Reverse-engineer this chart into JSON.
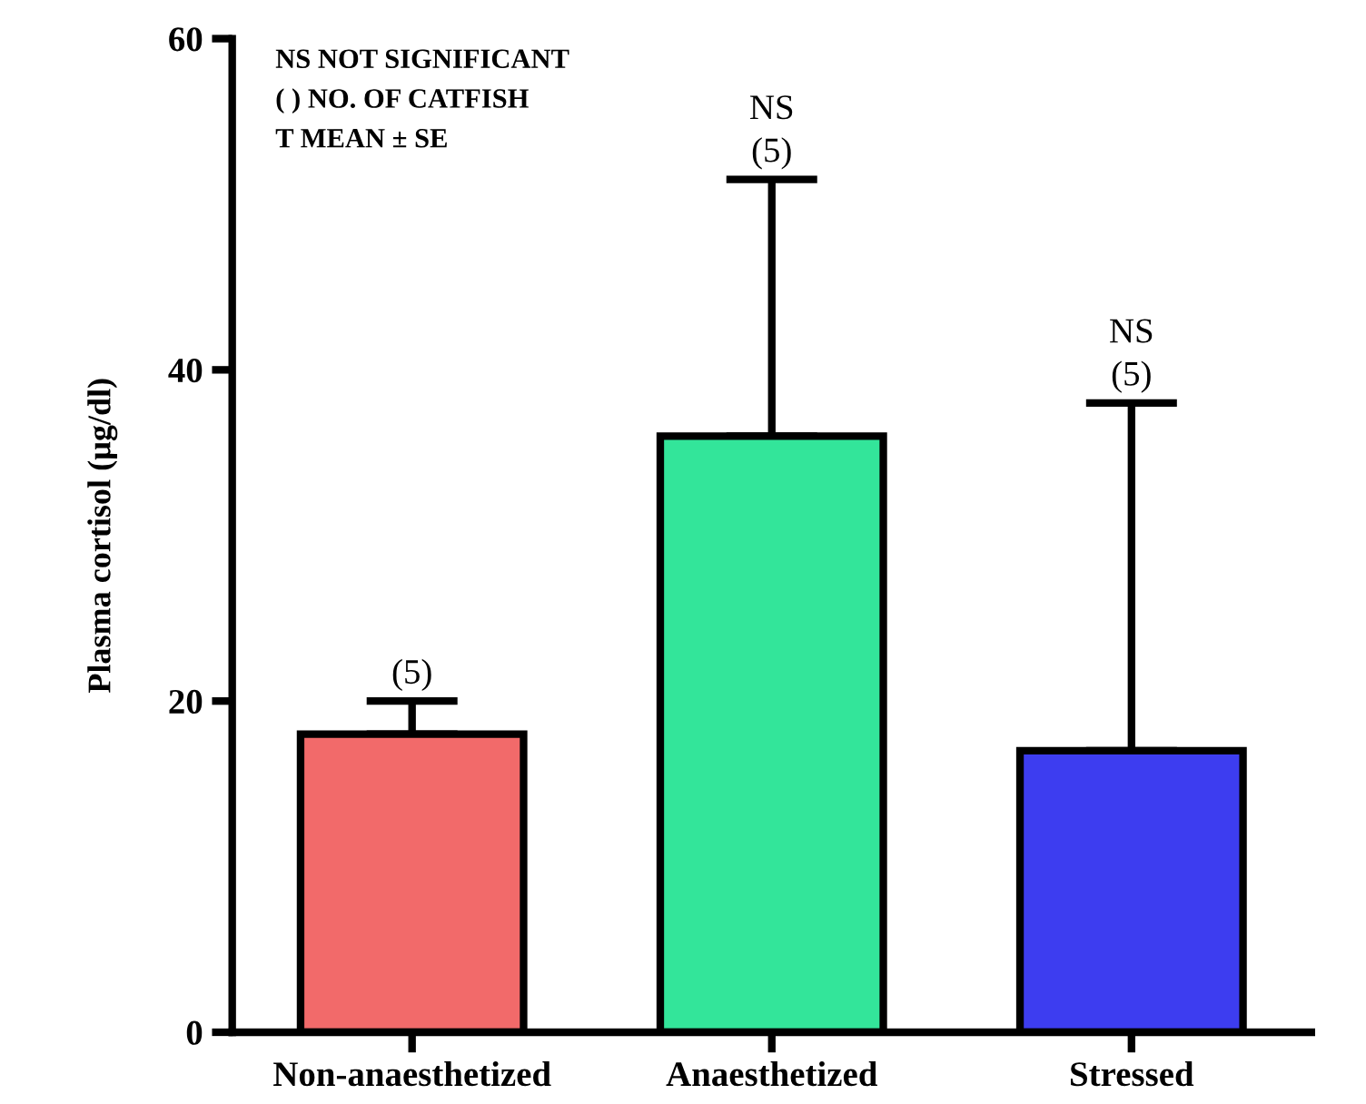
{
  "chart_data": {
    "type": "bar",
    "ylabel": "Plasma cortisol (µg/dl)",
    "categories": [
      "Non-anaesthetized",
      "Anaesthetized",
      "Stressed"
    ],
    "values": [
      18,
      36,
      17
    ],
    "colors": [
      "#f26a6a",
      "#33e59a",
      "#3d3df0"
    ],
    "errors": [
      [
        18,
        20
      ],
      [
        36,
        51.5
      ],
      [
        17,
        38
      ]
    ],
    "ylim": [
      0,
      60
    ],
    "yticks": [
      0,
      20,
      40,
      60
    ],
    "grid": false,
    "annotations": [
      "NS NOT SIGNIFICANT",
      "( ) NO. OF CATFISH",
      "T MEAN ± SE",
      {
        "text": "(5)",
        "x": "Non-anaesthetized",
        "y": 20
      },
      {
        "text": "(5)",
        "x": "Anaesthetized",
        "y": 51.5
      },
      {
        "text": "NS",
        "x": "Anaesthetized",
        "y": 51.5
      },
      {
        "text": "(5)",
        "x": "Stressed",
        "y": 38
      },
      {
        "text": "NS",
        "x": "Stressed",
        "y": 38
      }
    ]
  }
}
